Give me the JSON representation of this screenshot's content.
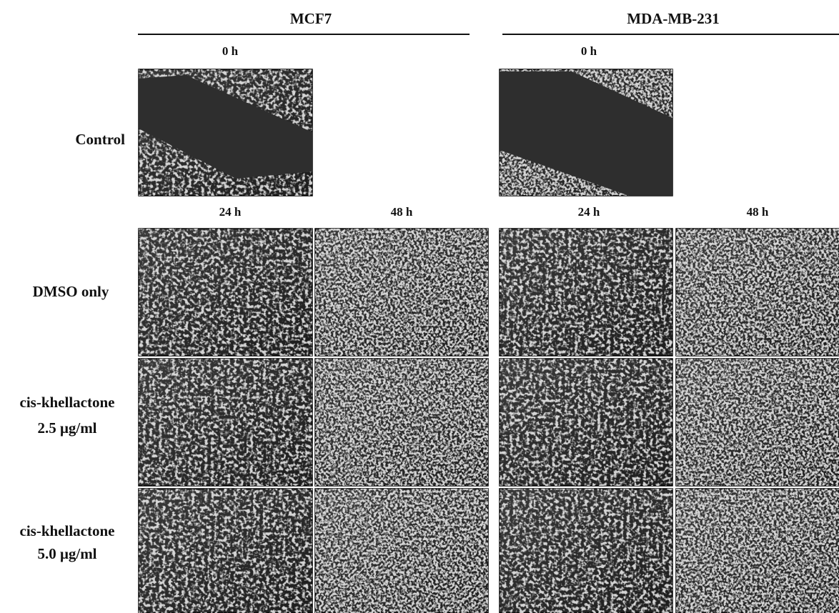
{
  "columns": [
    {
      "title": "MCF7",
      "time_labels": [
        "0 h",
        "24 h",
        "48 h"
      ]
    },
    {
      "title": "MDA-MB-231",
      "time_labels": [
        "0 h",
        "24 h",
        "48 h"
      ]
    }
  ],
  "rows": [
    {
      "label_lines": [
        "Control"
      ]
    },
    {
      "label_lines": [
        "DMSO only"
      ]
    },
    {
      "label_lines": [
        "cis-khellactone",
        "2.5 μg/ml"
      ]
    },
    {
      "label_lines": [
        "cis-khellactone",
        "5.0 μg/ml"
      ]
    }
  ]
}
